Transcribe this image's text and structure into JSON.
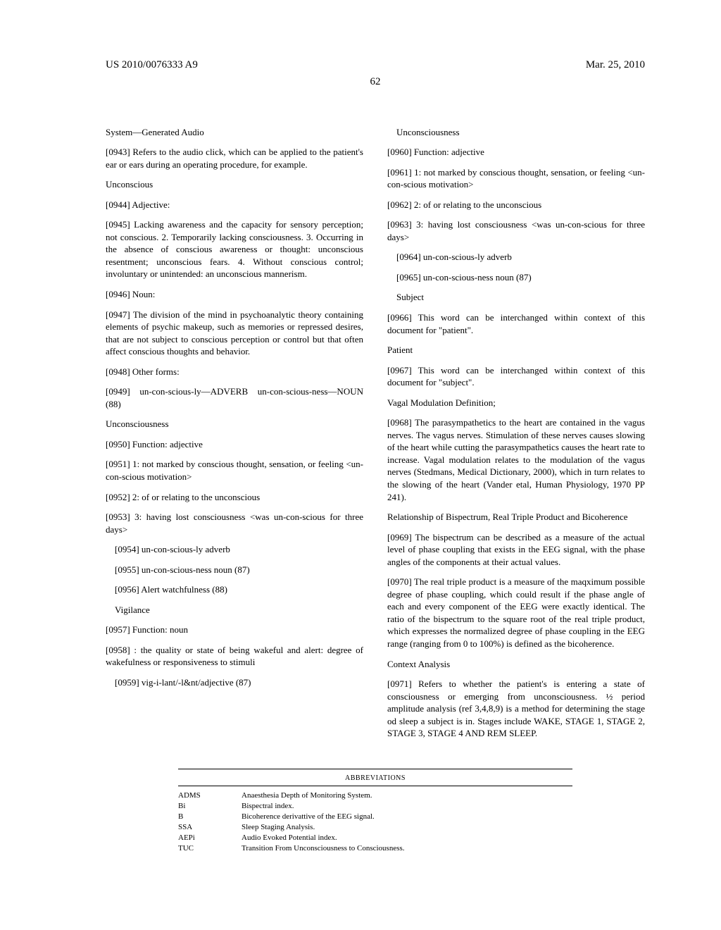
{
  "header": {
    "pub_number": "US 2010/0076333 A9",
    "pub_date": "Mar. 25, 2010",
    "page_number": "62"
  },
  "left": {
    "sys_audio_title": "System—Generated Audio",
    "p0943": "[0943]    Refers to the audio click, which can be applied to the patient's ear or ears during an operating procedure, for example.",
    "unconscious_title": "Unconscious",
    "p0944": "[0944]    Adjective:",
    "p0945": "[0945]    Lacking awareness and the capacity for sensory perception; not conscious. 2. Temporarily lacking consciousness. 3. Occurring in the absence of conscious awareness or thought: unconscious resentment; unconscious fears. 4. Without conscious control; involuntary or unintended: an unconscious mannerism.",
    "p0946": "[0946]    Noun:",
    "p0947": "[0947]    The division of the mind in psychoanalytic theory containing elements of psychic makeup, such as memories or repressed desires, that are not subject to conscious perception or control but that often affect conscious thoughts and behavior.",
    "p0948": "[0948]    Other forms:",
    "p0949": "[0949]    un-con-scious-ly—ADVERB          un-con-scious-ness—NOUN (88)",
    "unconsciousness_title": "Unconsciousness",
    "p0950": "[0950]    Function: adjective",
    "p0951": "[0951]    1: not marked by conscious thought, sensation, or feeling <un-con-scious motivation>",
    "p0952": "[0952]    2: of or relating to the unconscious",
    "p0953": "[0953]    3: having lost consciousness <was un-con-scious for three days>",
    "p0954": "[0954]    un-con-scious-ly adverb",
    "p0955": "[0955]    un-con-scious-ness noun (87)",
    "p0956": "[0956]    Alert watchfulness (88)",
    "vigilance_title": "Vigilance",
    "p0957": "[0957]    Function: noun",
    "p0958": "[0958]    : the quality or state of being wakeful and alert: degree of wakefulness or responsiveness to stimuli",
    "p0959": "[0959]    vig-i-lant/-l&nt/adjective (87)"
  },
  "right": {
    "unconsciousness_title": "Unconsciousness",
    "p0960": "[0960]    Function: adjective",
    "p0961": "[0961]    1: not marked by conscious thought, sensation, or feeling <un-con-scious motivation>",
    "p0962": "[0962]    2: of or relating to the unconscious",
    "p0963": "[0963]    3: having lost consciousness <was un-con-scious for three days>",
    "p0964": "[0964]    un-con-scious-ly adverb",
    "p0965": "[0965]    un-con-scious-ness noun (87)",
    "subject_title": "Subject",
    "p0966": "[0966]    This word can be interchanged within context of this document for \"patient\".",
    "patient_title": "Patient",
    "p0967": "[0967]    This word can be interchanged within context of this document for \"subject\".",
    "vagal_title": "Vagal Modulation Definition;",
    "p0968": "[0968]    The parasympathetics to the heart are contained in the vagus nerves. The vagus nerves. Stimulation of these nerves causes slowing of the heart while cutting the parasympathetics causes the heart rate to increase. Vagal modulation relates to the modulation of the vagus nerves (Stedmans, Medical Dictionary, 2000), which in turn relates to the slowing of the heart (Vander etal, Human Physiology, 1970 PP 241).",
    "bispectrum_title": "Relationship of Bispectrum, Real Triple Product and Bicoherence",
    "p0969": "[0969]    The bispectrum can be described as a measure of the actual level of phase coupling that exists in the EEG signal, with the phase angles of the components at their actual values.",
    "p0970": "[0970]    The real triple product is a measure of the maqximum possible degree of phase coupling, which could result if the phase angle of each and every component of the EEG were exactly identical. The ratio of the bispectrum to the square root of the real triple product, which expresses the normalized degree of phase coupling in the EEG range (ranging from 0 to 100%) is defined as the bicoherence.",
    "context_title": "Context Analysis",
    "p0971": "[0971]    Refers to whether the patient's is entering a state of consciousness or emerging from unconsciousness. ½ period amplitude analysis (ref 3,4,8,9) is a method for determining the stage od sleep a subject is in. Stages include WAKE, STAGE 1, STAGE 2, STAGE 3, STAGE 4 AND REM SLEEP."
  },
  "abbrev": {
    "title": "ABBREVIATIONS",
    "rows": [
      {
        "abbr": "ADMS",
        "def": "Anaesthesia Depth of Monitoring System."
      },
      {
        "abbr": "Bi",
        "def": "Bispectral index."
      },
      {
        "abbr": "B",
        "def": "Bicoherence derivattive of the EEG signal."
      },
      {
        "abbr": "SSA",
        "def": "Sleep Staging Analysis."
      },
      {
        "abbr": "AEPi",
        "def": "Audio Evoked Potential index."
      },
      {
        "abbr": "TUC",
        "def": "Transition From Unconsciousness to Consciousness."
      }
    ]
  }
}
